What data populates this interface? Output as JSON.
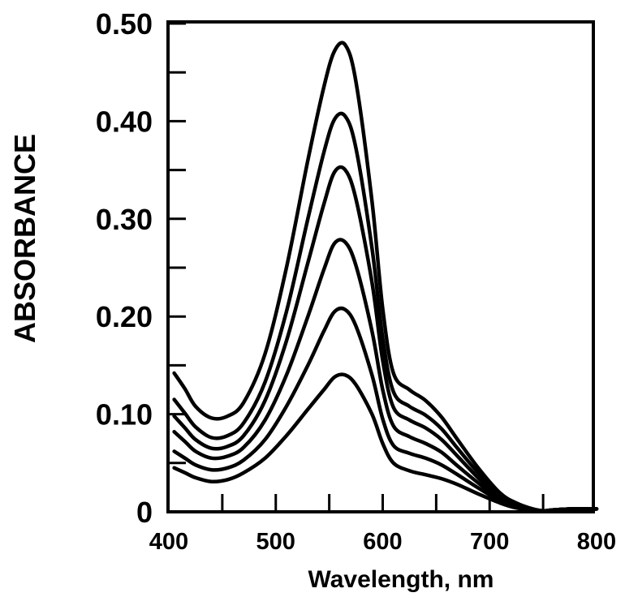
{
  "chart_data": {
    "type": "line",
    "title": "",
    "xlabel": "Wavelength, nm",
    "ylabel": "ABSORBANCE",
    "xlim": [
      400,
      800
    ],
    "ylim": [
      0,
      0.5
    ],
    "x_ticks": [
      "400",
      "500",
      "600",
      "700",
      "800"
    ],
    "y_ticks": [
      "0",
      "0.10",
      "0.20",
      "0.30",
      "0.40",
      "0.50"
    ],
    "grid": false,
    "legend": "none",
    "series": [
      {
        "name": "curve-1",
        "x": [
          405,
          415,
          425,
          440,
          455,
          470,
          490,
          510,
          530,
          545,
          555,
          565,
          575,
          590,
          600,
          610,
          625,
          640,
          655,
          670,
          690,
          710,
          725,
          740,
          750,
          760,
          780,
          800
        ],
        "values": [
          0.045,
          0.04,
          0.035,
          0.031,
          0.033,
          0.04,
          0.055,
          0.078,
          0.105,
          0.125,
          0.138,
          0.14,
          0.13,
          0.1,
          0.07,
          0.05,
          0.042,
          0.038,
          0.034,
          0.028,
          0.018,
          0.009,
          0.004,
          0.002,
          0.001,
          0.002,
          0.003,
          0.003
        ]
      },
      {
        "name": "curve-2",
        "x": [
          405,
          415,
          425,
          440,
          455,
          470,
          490,
          510,
          530,
          545,
          555,
          565,
          575,
          590,
          600,
          610,
          625,
          640,
          655,
          670,
          690,
          710,
          725,
          740,
          750,
          760,
          780,
          800
        ],
        "values": [
          0.062,
          0.055,
          0.048,
          0.043,
          0.045,
          0.053,
          0.074,
          0.108,
          0.15,
          0.185,
          0.205,
          0.207,
          0.19,
          0.14,
          0.095,
          0.068,
          0.06,
          0.055,
          0.048,
          0.038,
          0.024,
          0.011,
          0.005,
          0.002,
          0.001,
          0.002,
          0.003,
          0.003
        ]
      },
      {
        "name": "curve-3",
        "x": [
          405,
          415,
          425,
          440,
          455,
          470,
          490,
          510,
          530,
          545,
          555,
          565,
          575,
          590,
          600,
          610,
          625,
          640,
          655,
          670,
          690,
          710,
          725,
          740,
          750,
          760,
          780,
          800
        ],
        "values": [
          0.082,
          0.072,
          0.062,
          0.055,
          0.057,
          0.066,
          0.094,
          0.14,
          0.2,
          0.248,
          0.275,
          0.276,
          0.252,
          0.185,
          0.125,
          0.088,
          0.077,
          0.07,
          0.061,
          0.047,
          0.029,
          0.013,
          0.006,
          0.002,
          0.001,
          0.002,
          0.003,
          0.003
        ]
      },
      {
        "name": "curve-4",
        "x": [
          405,
          415,
          425,
          440,
          455,
          470,
          490,
          510,
          530,
          545,
          555,
          565,
          575,
          590,
          600,
          610,
          625,
          640,
          655,
          670,
          690,
          710,
          725,
          740,
          750,
          760,
          780,
          800
        ],
        "values": [
          0.098,
          0.086,
          0.074,
          0.065,
          0.067,
          0.078,
          0.114,
          0.175,
          0.255,
          0.315,
          0.348,
          0.35,
          0.32,
          0.235,
          0.155,
          0.107,
          0.094,
          0.086,
          0.074,
          0.057,
          0.034,
          0.015,
          0.007,
          0.003,
          0.001,
          0.002,
          0.003,
          0.003
        ]
      },
      {
        "name": "curve-5",
        "x": [
          405,
          415,
          425,
          440,
          455,
          470,
          490,
          510,
          530,
          545,
          555,
          565,
          575,
          590,
          600,
          610,
          625,
          640,
          655,
          670,
          690,
          710,
          725,
          740,
          750,
          760,
          780,
          800
        ],
        "values": [
          0.115,
          0.101,
          0.087,
          0.076,
          0.078,
          0.091,
          0.133,
          0.205,
          0.3,
          0.368,
          0.402,
          0.405,
          0.372,
          0.27,
          0.178,
          0.123,
          0.108,
          0.099,
          0.085,
          0.065,
          0.039,
          0.017,
          0.008,
          0.003,
          0.001,
          0.002,
          0.003,
          0.003
        ]
      },
      {
        "name": "curve-6",
        "x": [
          405,
          415,
          425,
          440,
          455,
          470,
          490,
          510,
          530,
          545,
          555,
          565,
          575,
          590,
          600,
          610,
          625,
          640,
          655,
          670,
          690,
          710,
          725,
          740,
          750,
          760,
          780,
          800
        ],
        "values": [
          0.142,
          0.126,
          0.108,
          0.096,
          0.098,
          0.112,
          0.162,
          0.25,
          0.36,
          0.435,
          0.472,
          0.478,
          0.44,
          0.318,
          0.208,
          0.142,
          0.125,
          0.114,
          0.097,
          0.074,
          0.044,
          0.019,
          0.009,
          0.003,
          0.001,
          0.002,
          0.003,
          0.003
        ]
      }
    ]
  }
}
